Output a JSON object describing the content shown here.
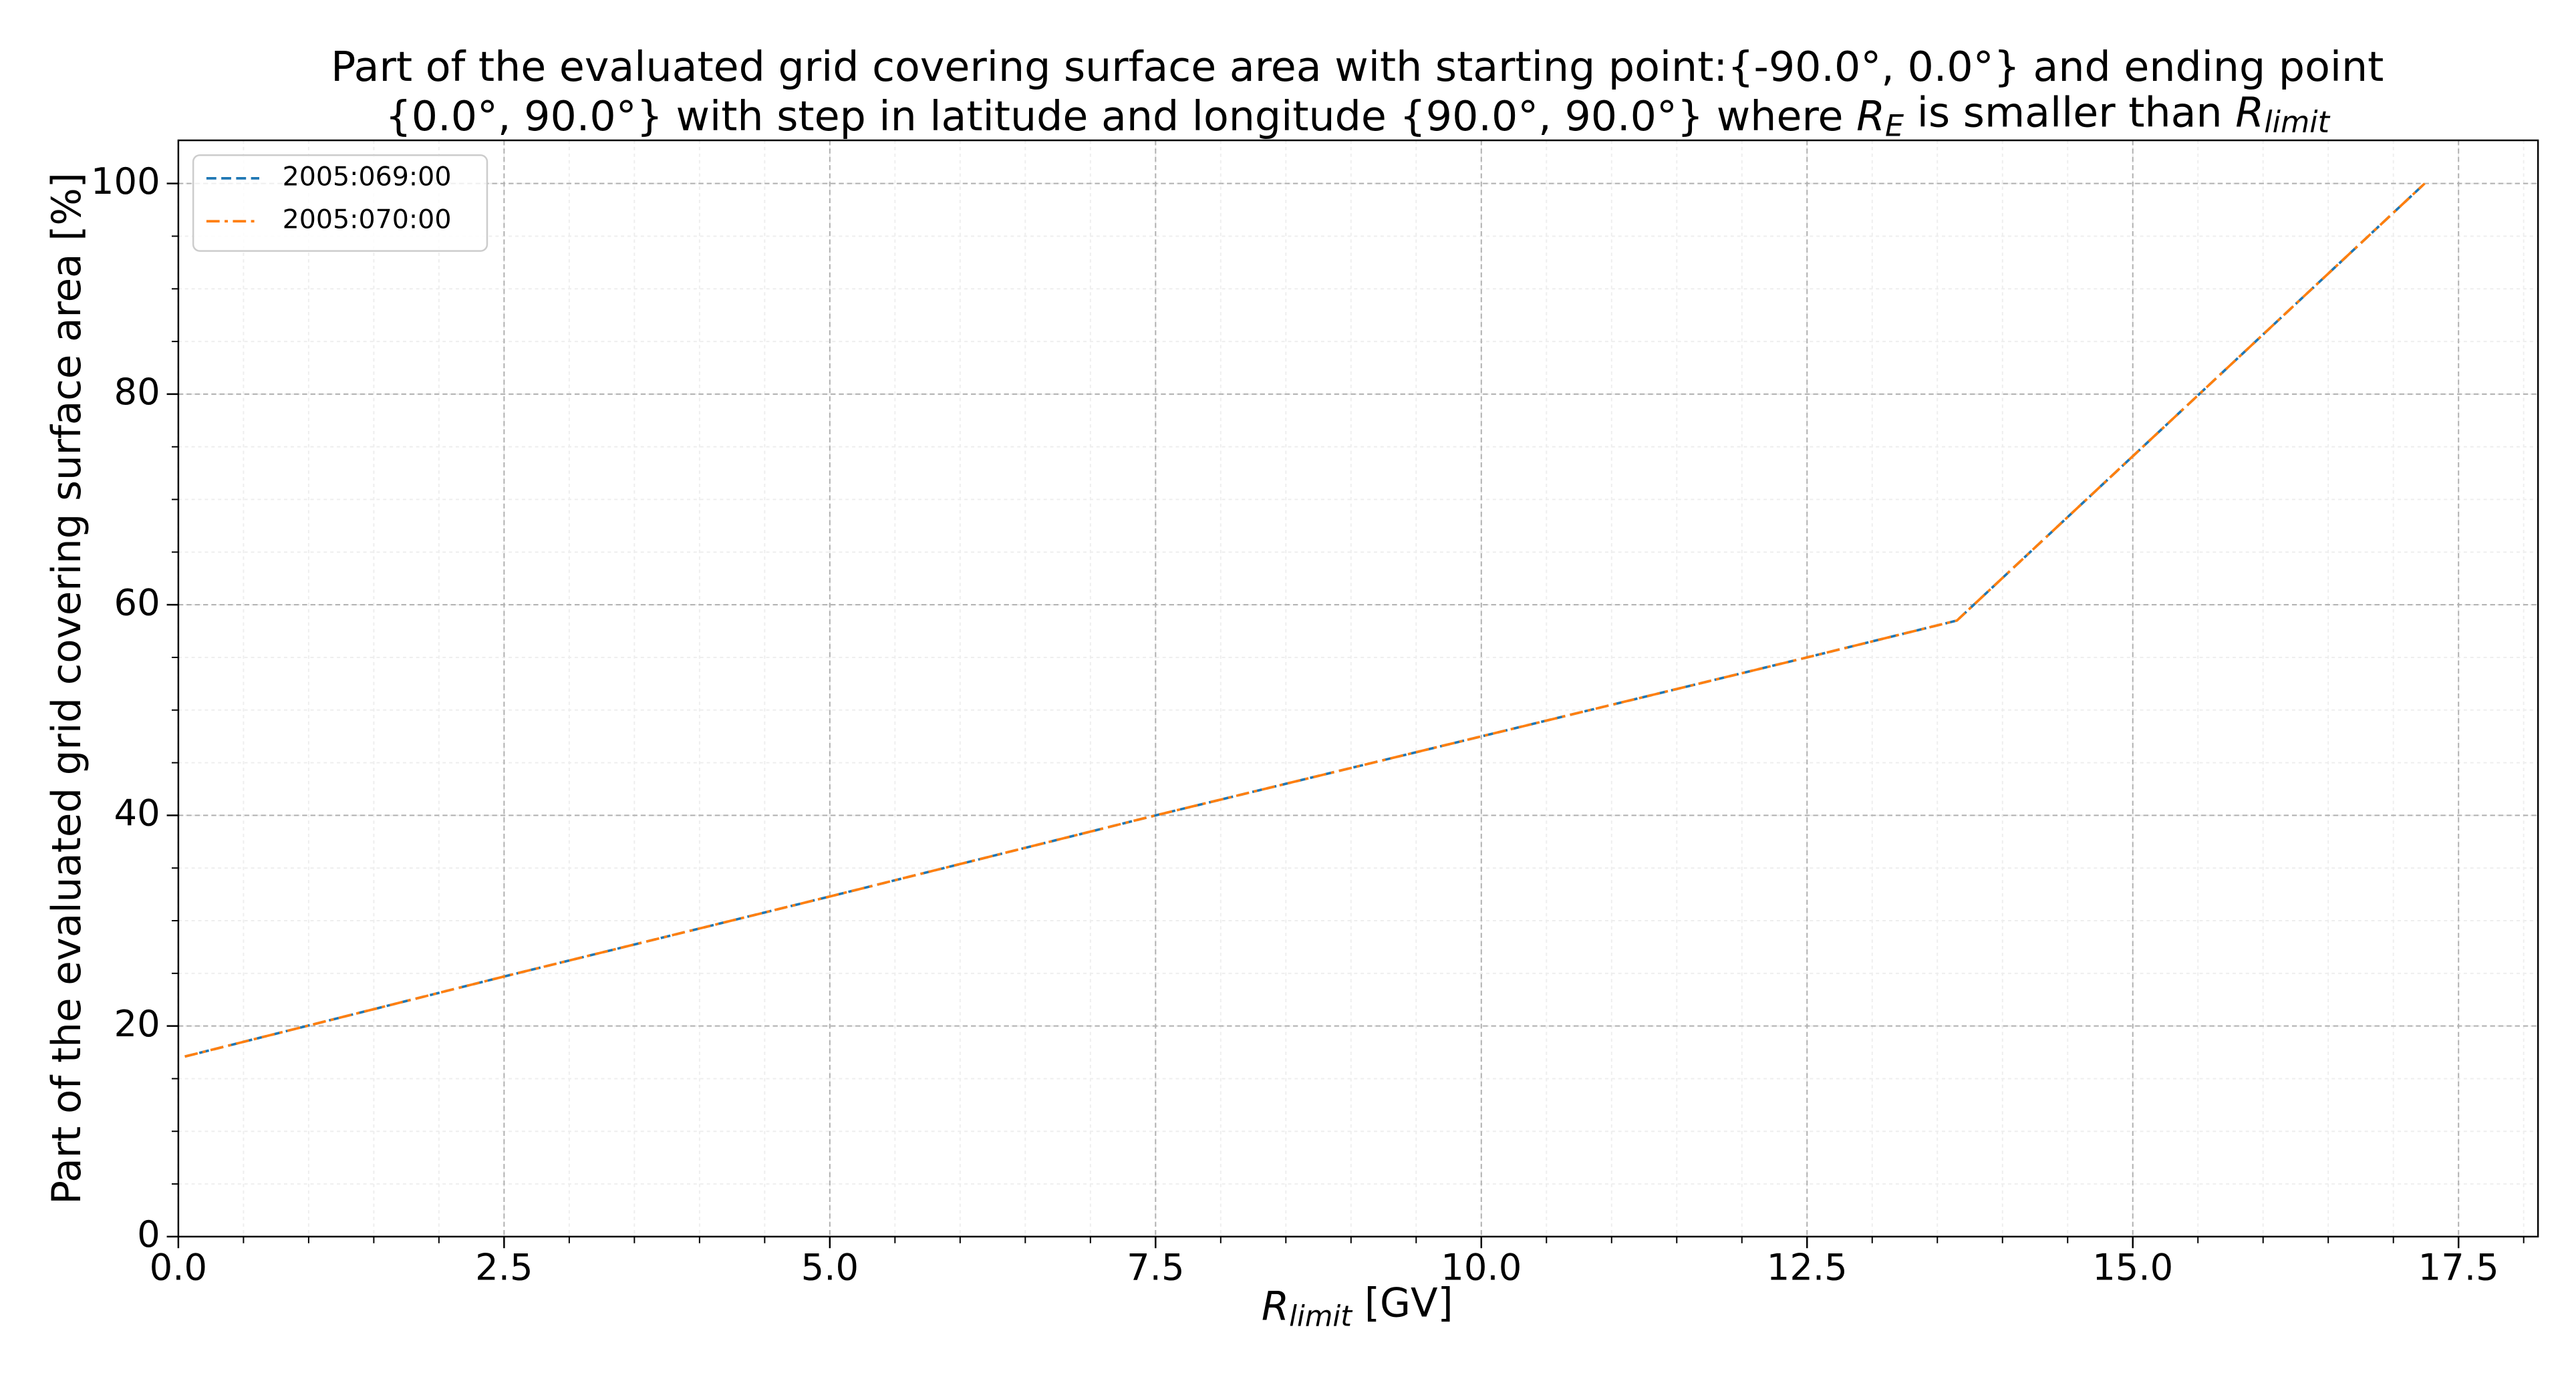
{
  "chart_data": {
    "type": "line",
    "title": [
      "Part of the evaluated grid covering surface area with starting point:{-90.0°, 0.0°} and ending point",
      "{0.0°, 90.0°} with step in latitude and longitude {90.0°, 90.0°} where R_E is smaller than R_limit"
    ],
    "xlabel": "R_limit [GV]",
    "ylabel": "Part of the evaluated grid covering surface area  [%]",
    "x": [
      0.05,
      2.5,
      5,
      7.5,
      10,
      12.5,
      13.65,
      17.24
    ],
    "series": [
      {
        "name": "2005:069:00",
        "color": "#1f77b4",
        "dash": "dashed",
        "values": [
          17.1,
          24.7,
          32.3,
          40.0,
          47.5,
          55.0,
          58.5,
          100
        ]
      },
      {
        "name": "2005:070:00",
        "color": "#ff7f0e",
        "dash": "dashdot",
        "values": [
          17.1,
          24.7,
          32.3,
          40.0,
          47.5,
          55.0,
          58.5,
          100
        ]
      }
    ],
    "xlim": [
      0,
      18.11
    ],
    "ylim": [
      0,
      104.1
    ],
    "xticks": [
      {
        "value": 0,
        "label": "0.0"
      },
      {
        "value": 2.5,
        "label": "2.5"
      },
      {
        "value": 5,
        "label": "5.0"
      },
      {
        "value": 7.5,
        "label": "7.5"
      },
      {
        "value": 10,
        "label": "10.0"
      },
      {
        "value": 12.5,
        "label": "12.5"
      },
      {
        "value": 15,
        "label": "15.0"
      },
      {
        "value": 17.5,
        "label": "17.5"
      }
    ],
    "yticks": [
      0,
      20,
      40,
      60,
      80,
      100
    ],
    "grid": true,
    "minor_grid": true,
    "legend": "upper left"
  }
}
